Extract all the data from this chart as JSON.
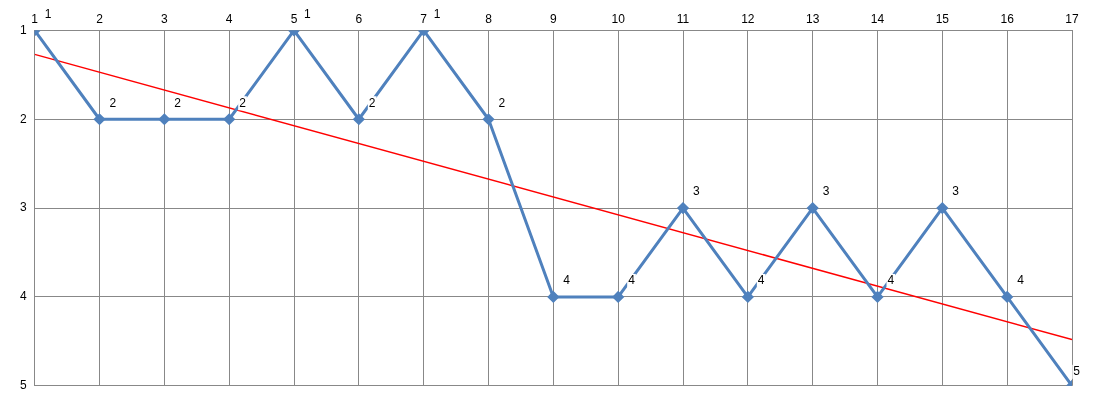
{
  "chart_data": {
    "type": "line",
    "x": [
      1,
      2,
      3,
      4,
      5,
      6,
      7,
      8,
      9,
      10,
      11,
      12,
      13,
      14,
      15,
      16,
      17
    ],
    "series": [
      {
        "color": "#4f81bd",
        "values": [
          1,
          2,
          2,
          2,
          1,
          2,
          1,
          2,
          4,
          4,
          3,
          4,
          3,
          4,
          3,
          4,
          5
        ],
        "marker": "diamond",
        "value_labels": [
          "1",
          "2",
          "2",
          "2",
          "1",
          "2",
          "1",
          "2",
          "4",
          "4",
          "3",
          "4",
          "3",
          "4",
          "3",
          "4",
          "5"
        ]
      },
      {
        "type": "line",
        "color": "#ff0000",
        "x": [
          1,
          17
        ],
        "values": [
          1.27,
          4.48
        ],
        "marker": "none"
      }
    ],
    "xlim": [
      1,
      17
    ],
    "xticks": [
      1,
      2,
      3,
      4,
      5,
      6,
      7,
      8,
      9,
      10,
      11,
      12,
      13,
      14,
      15,
      16,
      17
    ],
    "ylim": [
      5,
      1
    ],
    "yticks": [
      1,
      2,
      3,
      4,
      5
    ],
    "grid": true,
    "legend": false,
    "line_style": "solid"
  }
}
